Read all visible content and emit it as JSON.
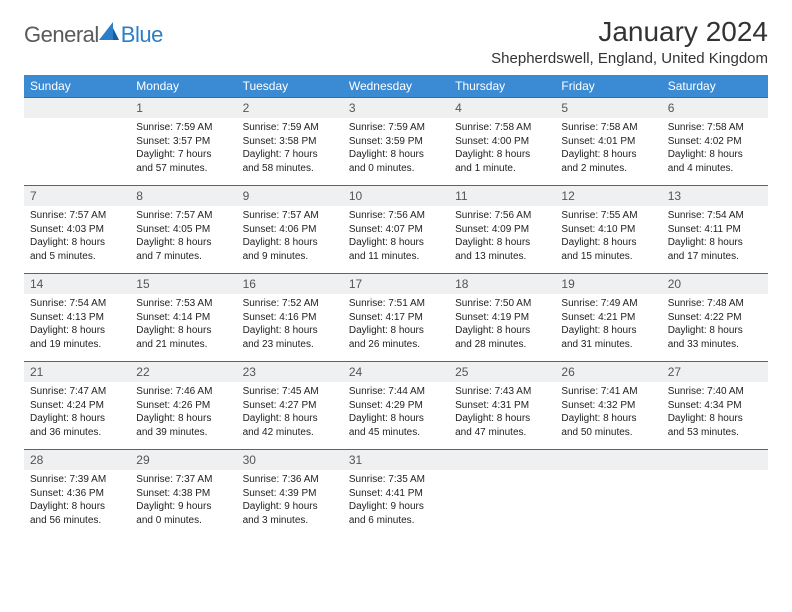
{
  "logo": {
    "text1": "General",
    "text2": "Blue"
  },
  "title": "January 2024",
  "location": "Shepherdswell, England, United Kingdom",
  "colors": {
    "header_bg": "#3b8bd4",
    "header_text": "#ffffff",
    "daynum_bg": "#eef0f2",
    "border": "#2d6fa8",
    "logo_gray": "#5a5a5a",
    "logo_blue": "#2d7dc8"
  },
  "dayNames": [
    "Sunday",
    "Monday",
    "Tuesday",
    "Wednesday",
    "Thursday",
    "Friday",
    "Saturday"
  ],
  "weeks": [
    {
      "nums": [
        "",
        "1",
        "2",
        "3",
        "4",
        "5",
        "6"
      ],
      "details": [
        {
          "sunrise": "",
          "sunset": "",
          "daylight1": "",
          "daylight2": ""
        },
        {
          "sunrise": "Sunrise: 7:59 AM",
          "sunset": "Sunset: 3:57 PM",
          "daylight1": "Daylight: 7 hours",
          "daylight2": "and 57 minutes."
        },
        {
          "sunrise": "Sunrise: 7:59 AM",
          "sunset": "Sunset: 3:58 PM",
          "daylight1": "Daylight: 7 hours",
          "daylight2": "and 58 minutes."
        },
        {
          "sunrise": "Sunrise: 7:59 AM",
          "sunset": "Sunset: 3:59 PM",
          "daylight1": "Daylight: 8 hours",
          "daylight2": "and 0 minutes."
        },
        {
          "sunrise": "Sunrise: 7:58 AM",
          "sunset": "Sunset: 4:00 PM",
          "daylight1": "Daylight: 8 hours",
          "daylight2": "and 1 minute."
        },
        {
          "sunrise": "Sunrise: 7:58 AM",
          "sunset": "Sunset: 4:01 PM",
          "daylight1": "Daylight: 8 hours",
          "daylight2": "and 2 minutes."
        },
        {
          "sunrise": "Sunrise: 7:58 AM",
          "sunset": "Sunset: 4:02 PM",
          "daylight1": "Daylight: 8 hours",
          "daylight2": "and 4 minutes."
        }
      ]
    },
    {
      "nums": [
        "7",
        "8",
        "9",
        "10",
        "11",
        "12",
        "13"
      ],
      "details": [
        {
          "sunrise": "Sunrise: 7:57 AM",
          "sunset": "Sunset: 4:03 PM",
          "daylight1": "Daylight: 8 hours",
          "daylight2": "and 5 minutes."
        },
        {
          "sunrise": "Sunrise: 7:57 AM",
          "sunset": "Sunset: 4:05 PM",
          "daylight1": "Daylight: 8 hours",
          "daylight2": "and 7 minutes."
        },
        {
          "sunrise": "Sunrise: 7:57 AM",
          "sunset": "Sunset: 4:06 PM",
          "daylight1": "Daylight: 8 hours",
          "daylight2": "and 9 minutes."
        },
        {
          "sunrise": "Sunrise: 7:56 AM",
          "sunset": "Sunset: 4:07 PM",
          "daylight1": "Daylight: 8 hours",
          "daylight2": "and 11 minutes."
        },
        {
          "sunrise": "Sunrise: 7:56 AM",
          "sunset": "Sunset: 4:09 PM",
          "daylight1": "Daylight: 8 hours",
          "daylight2": "and 13 minutes."
        },
        {
          "sunrise": "Sunrise: 7:55 AM",
          "sunset": "Sunset: 4:10 PM",
          "daylight1": "Daylight: 8 hours",
          "daylight2": "and 15 minutes."
        },
        {
          "sunrise": "Sunrise: 7:54 AM",
          "sunset": "Sunset: 4:11 PM",
          "daylight1": "Daylight: 8 hours",
          "daylight2": "and 17 minutes."
        }
      ]
    },
    {
      "nums": [
        "14",
        "15",
        "16",
        "17",
        "18",
        "19",
        "20"
      ],
      "details": [
        {
          "sunrise": "Sunrise: 7:54 AM",
          "sunset": "Sunset: 4:13 PM",
          "daylight1": "Daylight: 8 hours",
          "daylight2": "and 19 minutes."
        },
        {
          "sunrise": "Sunrise: 7:53 AM",
          "sunset": "Sunset: 4:14 PM",
          "daylight1": "Daylight: 8 hours",
          "daylight2": "and 21 minutes."
        },
        {
          "sunrise": "Sunrise: 7:52 AM",
          "sunset": "Sunset: 4:16 PM",
          "daylight1": "Daylight: 8 hours",
          "daylight2": "and 23 minutes."
        },
        {
          "sunrise": "Sunrise: 7:51 AM",
          "sunset": "Sunset: 4:17 PM",
          "daylight1": "Daylight: 8 hours",
          "daylight2": "and 26 minutes."
        },
        {
          "sunrise": "Sunrise: 7:50 AM",
          "sunset": "Sunset: 4:19 PM",
          "daylight1": "Daylight: 8 hours",
          "daylight2": "and 28 minutes."
        },
        {
          "sunrise": "Sunrise: 7:49 AM",
          "sunset": "Sunset: 4:21 PM",
          "daylight1": "Daylight: 8 hours",
          "daylight2": "and 31 minutes."
        },
        {
          "sunrise": "Sunrise: 7:48 AM",
          "sunset": "Sunset: 4:22 PM",
          "daylight1": "Daylight: 8 hours",
          "daylight2": "and 33 minutes."
        }
      ]
    },
    {
      "nums": [
        "21",
        "22",
        "23",
        "24",
        "25",
        "26",
        "27"
      ],
      "details": [
        {
          "sunrise": "Sunrise: 7:47 AM",
          "sunset": "Sunset: 4:24 PM",
          "daylight1": "Daylight: 8 hours",
          "daylight2": "and 36 minutes."
        },
        {
          "sunrise": "Sunrise: 7:46 AM",
          "sunset": "Sunset: 4:26 PM",
          "daylight1": "Daylight: 8 hours",
          "daylight2": "and 39 minutes."
        },
        {
          "sunrise": "Sunrise: 7:45 AM",
          "sunset": "Sunset: 4:27 PM",
          "daylight1": "Daylight: 8 hours",
          "daylight2": "and 42 minutes."
        },
        {
          "sunrise": "Sunrise: 7:44 AM",
          "sunset": "Sunset: 4:29 PM",
          "daylight1": "Daylight: 8 hours",
          "daylight2": "and 45 minutes."
        },
        {
          "sunrise": "Sunrise: 7:43 AM",
          "sunset": "Sunset: 4:31 PM",
          "daylight1": "Daylight: 8 hours",
          "daylight2": "and 47 minutes."
        },
        {
          "sunrise": "Sunrise: 7:41 AM",
          "sunset": "Sunset: 4:32 PM",
          "daylight1": "Daylight: 8 hours",
          "daylight2": "and 50 minutes."
        },
        {
          "sunrise": "Sunrise: 7:40 AM",
          "sunset": "Sunset: 4:34 PM",
          "daylight1": "Daylight: 8 hours",
          "daylight2": "and 53 minutes."
        }
      ]
    },
    {
      "nums": [
        "28",
        "29",
        "30",
        "31",
        "",
        "",
        ""
      ],
      "details": [
        {
          "sunrise": "Sunrise: 7:39 AM",
          "sunset": "Sunset: 4:36 PM",
          "daylight1": "Daylight: 8 hours",
          "daylight2": "and 56 minutes."
        },
        {
          "sunrise": "Sunrise: 7:37 AM",
          "sunset": "Sunset: 4:38 PM",
          "daylight1": "Daylight: 9 hours",
          "daylight2": "and 0 minutes."
        },
        {
          "sunrise": "Sunrise: 7:36 AM",
          "sunset": "Sunset: 4:39 PM",
          "daylight1": "Daylight: 9 hours",
          "daylight2": "and 3 minutes."
        },
        {
          "sunrise": "Sunrise: 7:35 AM",
          "sunset": "Sunset: 4:41 PM",
          "daylight1": "Daylight: 9 hours",
          "daylight2": "and 6 minutes."
        },
        {
          "sunrise": "",
          "sunset": "",
          "daylight1": "",
          "daylight2": ""
        },
        {
          "sunrise": "",
          "sunset": "",
          "daylight1": "",
          "daylight2": ""
        },
        {
          "sunrise": "",
          "sunset": "",
          "daylight1": "",
          "daylight2": ""
        }
      ]
    }
  ]
}
